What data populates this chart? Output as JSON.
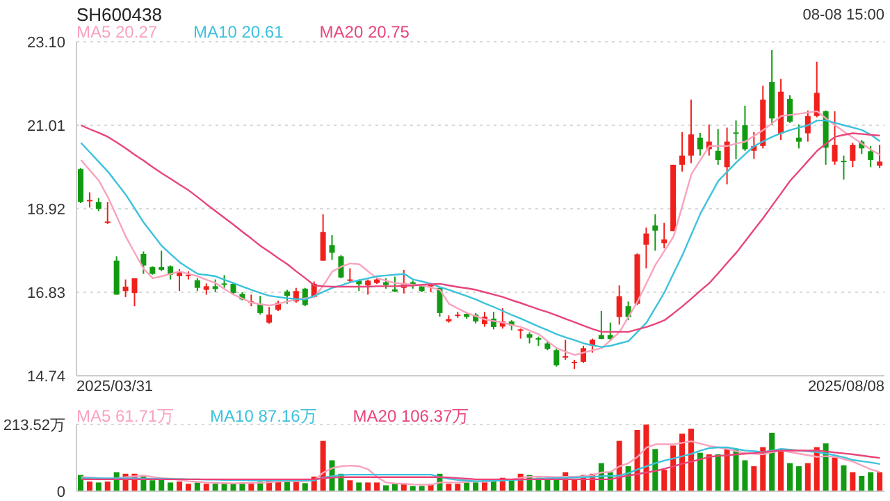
{
  "chart_data": [
    {
      "type": "candlestick",
      "title": "SH600438",
      "annotations": [
        "08-08 15:00",
        "2025/03/31",
        "2025/08/08"
      ],
      "legend": "top left",
      "grid": "y",
      "tick_labels": "y",
      "categories": [
        null,
        null,
        null,
        null,
        null,
        null,
        null,
        null,
        null,
        null,
        null,
        null,
        null,
        null,
        null,
        null,
        null,
        null,
        null,
        null,
        null,
        null,
        null,
        null,
        null,
        null,
        null,
        null,
        null,
        null,
        null,
        null,
        null,
        null,
        null,
        null,
        null,
        null,
        null,
        null,
        null,
        null,
        null,
        null,
        null,
        null,
        null,
        null,
        null,
        null,
        null,
        null,
        null,
        null,
        null,
        null,
        null,
        null,
        null,
        null,
        null,
        null,
        null,
        null,
        null,
        null,
        null,
        null,
        null,
        null,
        null,
        null,
        null,
        null,
        null,
        null,
        null,
        null,
        null,
        null,
        null,
        null,
        null,
        null,
        null,
        null,
        null,
        null,
        null,
        null
      ],
      "ylim": [
        14.74,
        23.1
      ],
      "yticks": [
        {
          "value": 23.1,
          "label": "23.10"
        },
        21.01,
        18.92,
        16.83,
        14.74
      ],
      "ohlc": [
        [
          19.91,
          19.94,
          19.06,
          19.09
        ],
        [
          19.12,
          19.33,
          18.95,
          19.14
        ],
        [
          19.09,
          19.19,
          18.86,
          18.92
        ],
        [
          18.58,
          19.09,
          18.54,
          18.6
        ],
        [
          17.62,
          17.73,
          16.77,
          16.77
        ],
        [
          16.86,
          17.15,
          16.71,
          16.97
        ],
        [
          16.81,
          17.18,
          16.48,
          17.18
        ],
        [
          17.79,
          17.85,
          17.29,
          17.5
        ],
        [
          17.46,
          17.48,
          17.27,
          17.29
        ],
        [
          17.46,
          17.87,
          17.36,
          17.39
        ],
        [
          17.48,
          17.5,
          17.15,
          17.27
        ],
        [
          17.23,
          17.41,
          16.86,
          17.35
        ],
        [
          17.26,
          17.35,
          17.15,
          17.27
        ],
        [
          17.13,
          17.18,
          16.86,
          16.94
        ],
        [
          16.89,
          17.05,
          16.77,
          16.98
        ],
        [
          16.98,
          17.15,
          16.83,
          16.91
        ],
        [
          17.05,
          17.26,
          16.94,
          17.03
        ],
        [
          17.04,
          17.08,
          16.77,
          16.81
        ],
        [
          16.79,
          16.83,
          16.63,
          16.65
        ],
        [
          16.59,
          16.77,
          16.48,
          16.6
        ],
        [
          16.54,
          16.74,
          16.27,
          16.31
        ],
        [
          16.07,
          16.46,
          16.04,
          16.27
        ],
        [
          16.39,
          16.62,
          16.36,
          16.57
        ],
        [
          16.85,
          16.89,
          16.54,
          16.74
        ],
        [
          16.6,
          16.94,
          16.57,
          16.86
        ],
        [
          16.92,
          16.94,
          16.48,
          16.51
        ],
        [
          16.71,
          17.1,
          16.71,
          17.04
        ],
        [
          17.62,
          18.78,
          17.62,
          18.34
        ],
        [
          18.01,
          18.26,
          17.64,
          17.82
        ],
        [
          17.73,
          17.76,
          17.18,
          17.2
        ],
        [
          17.13,
          17.43,
          17.06,
          17.15
        ],
        [
          17.12,
          17.15,
          16.86,
          17.03
        ],
        [
          17.0,
          17.15,
          16.77,
          17.12
        ],
        [
          17.06,
          17.2,
          17.04,
          17.15
        ],
        [
          17.08,
          17.18,
          16.92,
          17.01
        ],
        [
          16.9,
          17.22,
          16.83,
          16.85
        ],
        [
          16.94,
          17.39,
          16.8,
          17.06
        ],
        [
          17.08,
          17.12,
          16.92,
          17.01
        ],
        [
          16.98,
          17.04,
          16.83,
          16.86
        ],
        [
          17.0,
          17.06,
          16.83,
          17.01
        ],
        [
          16.94,
          16.94,
          16.22,
          16.31
        ],
        [
          16.1,
          16.25,
          16.07,
          16.16
        ],
        [
          16.26,
          16.34,
          16.19,
          16.27
        ],
        [
          16.29,
          16.34,
          16.17,
          16.21
        ],
        [
          16.27,
          16.31,
          16.05,
          16.1
        ],
        [
          16.03,
          16.34,
          15.97,
          16.22
        ],
        [
          16.17,
          16.34,
          15.9,
          15.96
        ],
        [
          15.97,
          16.43,
          15.92,
          16.1
        ],
        [
          16.1,
          16.13,
          15.88,
          16.0
        ],
        [
          15.89,
          15.92,
          15.67,
          15.9
        ],
        [
          15.78,
          15.83,
          15.55,
          15.69
        ],
        [
          15.68,
          15.72,
          15.49,
          15.67
        ],
        [
          15.55,
          15.61,
          15.38,
          15.41
        ],
        [
          15.38,
          15.43,
          14.97,
          15.0
        ],
        [
          15.22,
          15.64,
          15.14,
          15.23
        ],
        [
          15.08,
          15.14,
          14.91,
          15.09
        ],
        [
          15.09,
          15.49,
          15.06,
          15.43
        ],
        [
          15.49,
          15.67,
          15.32,
          15.64
        ],
        [
          15.76,
          16.36,
          15.66,
          15.66
        ],
        [
          15.76,
          16.07,
          15.61,
          15.66
        ],
        [
          16.21,
          17.0,
          16.02,
          16.73
        ],
        [
          16.48,
          16.6,
          16.13,
          16.21
        ],
        [
          16.54,
          17.8,
          16.51,
          17.78
        ],
        [
          18.02,
          18.45,
          17.43,
          18.3
        ],
        [
          18.5,
          18.78,
          17.87,
          18.37
        ],
        [
          18.06,
          18.57,
          17.93,
          18.15
        ],
        [
          18.36,
          20.02,
          18.36,
          20.02
        ],
        [
          20.02,
          20.84,
          19.85,
          20.25
        ],
        [
          20.25,
          21.65,
          20.06,
          20.78
        ],
        [
          20.7,
          20.82,
          20.25,
          20.41
        ],
        [
          20.41,
          21.03,
          20.25,
          20.6
        ],
        [
          20.37,
          20.92,
          20.02,
          20.14
        ],
        [
          19.96,
          20.95,
          19.53,
          20.6
        ],
        [
          20.83,
          21.13,
          20.16,
          20.81
        ],
        [
          21.01,
          21.5,
          20.37,
          20.41
        ],
        [
          20.37,
          20.84,
          20.17,
          20.49
        ],
        [
          20.49,
          22.0,
          20.43,
          21.65
        ],
        [
          22.09,
          22.89,
          21.01,
          21.18
        ],
        [
          20.8,
          22.17,
          20.64,
          21.85
        ],
        [
          21.67,
          21.76,
          21.07,
          21.1
        ],
        [
          20.7,
          21.03,
          20.43,
          20.6
        ],
        [
          20.81,
          21.38,
          20.6,
          21.24
        ],
        [
          21.24,
          22.6,
          21.21,
          21.82
        ],
        [
          21.36,
          21.38,
          20.02,
          20.45
        ],
        [
          20.1,
          21.36,
          20.02,
          20.52
        ],
        [
          20.12,
          20.25,
          19.65,
          20.1
        ],
        [
          20.12,
          20.57,
          19.96,
          20.52
        ],
        [
          20.6,
          20.64,
          20.29,
          20.43
        ],
        [
          20.36,
          20.49,
          19.96,
          20.14
        ],
        [
          20.0,
          20.52,
          19.94,
          20.1
        ]
      ],
      "colors": [
        "#129b12",
        "#f0201c",
        "#129b12",
        "#f0201c",
        "#129b12",
        "#f0201c",
        "#f0201c",
        "#129b12",
        "#129b12",
        "#129b12",
        "#129b12",
        "#f0201c",
        "#f0201c",
        "#129b12",
        "#f0201c",
        "#129b12",
        "#129b12",
        "#129b12",
        "#129b12",
        "#f0201c",
        "#129b12",
        "#f0201c",
        "#f0201c",
        "#129b12",
        "#f0201c",
        "#129b12",
        "#f0201c",
        "#f0201c",
        "#129b12",
        "#129b12",
        "#f0201c",
        "#129b12",
        "#f0201c",
        "#f0201c",
        "#129b12",
        "#129b12",
        "#f0201c",
        "#129b12",
        "#129b12",
        "#f0201c",
        "#129b12",
        "#f0201c",
        "#f0201c",
        "#129b12",
        "#129b12",
        "#f0201c",
        "#129b12",
        "#f0201c",
        "#129b12",
        "#f0201c",
        "#129b12",
        "#129b12",
        "#129b12",
        "#129b12",
        "#f0201c",
        "#f0201c",
        "#f0201c",
        "#f0201c",
        "#129b12",
        "#129b12",
        "#f0201c",
        "#129b12",
        "#f0201c",
        "#f0201c",
        "#129b12",
        "#f0201c",
        "#f0201c",
        "#f0201c",
        "#f0201c",
        "#129b12",
        "#f0201c",
        "#129b12",
        "#f0201c",
        "#129b12",
        "#129b12",
        "#f0201c",
        "#f0201c",
        "#129b12",
        "#f0201c",
        "#129b12",
        "#129b12",
        "#f0201c",
        "#f0201c",
        "#129b12",
        "#f0201c",
        "#129b12",
        "#f0201c",
        "#129b12",
        "#129b12",
        "#f0201c"
      ],
      "series": [
        {
          "type": "line",
          "name": "MA5 20.27",
          "color": "#f9a3bd",
          "values": [
            20.14,
            19.88,
            19.62,
            19.21,
            18.72,
            18.22,
            17.81,
            17.41,
            17.18,
            17.23,
            17.29,
            17.35,
            17.29,
            17.23,
            17.14,
            17.06,
            16.91,
            16.77,
            16.67,
            16.57,
            16.53,
            16.5,
            16.54,
            16.6,
            16.65,
            16.68,
            16.71,
            17.0,
            17.35,
            17.47,
            17.55,
            17.53,
            17.35,
            17.18,
            17.12,
            17.06,
            17.04,
            17.02,
            17.0,
            16.95,
            16.89,
            16.54,
            16.42,
            16.31,
            16.23,
            16.15,
            16.11,
            16.07,
            16.01,
            15.96,
            15.87,
            15.78,
            15.6,
            15.43,
            15.34,
            15.26,
            15.32,
            15.38,
            15.43,
            15.63,
            15.84,
            16.22,
            16.6,
            17.06,
            17.52,
            17.87,
            18.22,
            19.0,
            19.79,
            20.14,
            20.49,
            20.49,
            20.49,
            20.55,
            20.6,
            20.75,
            20.89,
            21.06,
            21.24,
            21.27,
            21.3,
            21.33,
            21.36,
            21.18,
            21.01,
            20.85,
            20.7,
            20.55,
            20.4,
            20.27
          ]
        },
        {
          "type": "line",
          "name": "MA10 20.61",
          "color": "#3cc2dc",
          "values": [
            20.57,
            20.33,
            20.09,
            19.85,
            19.56,
            19.27,
            18.92,
            18.57,
            18.28,
            17.99,
            17.78,
            17.58,
            17.43,
            17.29,
            17.26,
            17.23,
            17.14,
            17.06,
            16.97,
            16.89,
            16.81,
            16.74,
            16.71,
            16.68,
            16.66,
            16.65,
            16.74,
            16.84,
            16.94,
            17.0,
            17.08,
            17.13,
            17.18,
            17.23,
            17.25,
            17.27,
            17.29,
            17.15,
            17.1,
            17.04,
            16.96,
            16.89,
            16.81,
            16.73,
            16.65,
            16.55,
            16.46,
            16.36,
            16.26,
            16.17,
            16.07,
            15.97,
            15.88,
            15.78,
            15.7,
            15.63,
            15.55,
            15.5,
            15.46,
            15.49,
            15.55,
            15.61,
            15.84,
            16.07,
            16.45,
            16.83,
            17.3,
            17.76,
            18.28,
            18.8,
            19.21,
            19.62,
            19.85,
            20.08,
            20.29,
            20.49,
            20.61,
            20.72,
            20.81,
            20.89,
            20.95,
            21.01,
            21.13,
            21.13,
            21.07,
            21.01,
            20.95,
            20.89,
            20.77,
            20.61
          ]
        },
        {
          "type": "line",
          "name": "MA20 20.75",
          "color": "#e8457a",
          "values": [
            21.01,
            20.91,
            20.82,
            20.72,
            20.58,
            20.43,
            20.27,
            20.12,
            19.96,
            19.81,
            19.67,
            19.52,
            19.38,
            19.21,
            19.03,
            18.86,
            18.69,
            18.52,
            18.34,
            18.17,
            17.99,
            17.84,
            17.68,
            17.53,
            17.35,
            17.18,
            17.0,
            16.98,
            16.97,
            16.97,
            16.97,
            16.97,
            16.97,
            16.98,
            16.98,
            16.98,
            16.99,
            17.0,
            17.02,
            17.03,
            17.04,
            17.0,
            16.96,
            16.93,
            16.89,
            16.83,
            16.77,
            16.71,
            16.63,
            16.56,
            16.48,
            16.4,
            16.33,
            16.25,
            16.16,
            16.08,
            15.99,
            15.91,
            15.84,
            15.84,
            15.84,
            15.84,
            15.9,
            15.96,
            16.04,
            16.13,
            16.3,
            16.48,
            16.67,
            16.87,
            17.06,
            17.31,
            17.57,
            17.82,
            18.11,
            18.4,
            18.69,
            19.0,
            19.31,
            19.62,
            19.87,
            20.12,
            20.37,
            20.55,
            20.72,
            20.77,
            20.81,
            20.79,
            20.77,
            20.75
          ]
        }
      ]
    },
    {
      "type": "bar",
      "legend": "top left",
      "grid": "y",
      "tick_labels": "y",
      "categories": [
        null,
        null,
        null,
        null,
        null,
        null,
        null,
        null,
        null,
        null,
        null,
        null,
        null,
        null,
        null,
        null,
        null,
        null,
        null,
        null,
        null,
        null,
        null,
        null,
        null,
        null,
        null,
        null,
        null,
        null,
        null,
        null,
        null,
        null,
        null,
        null,
        null,
        null,
        null,
        null,
        null,
        null,
        null,
        null,
        null,
        null,
        null,
        null,
        null,
        null,
        null,
        null,
        null,
        null,
        null,
        null,
        null,
        null,
        null,
        null,
        null,
        null,
        null,
        null,
        null,
        null,
        null,
        null,
        null,
        null,
        null,
        null,
        null,
        null,
        null,
        null,
        null,
        null,
        null,
        null,
        null,
        null,
        null,
        null,
        null,
        null,
        null,
        null,
        null,
        null
      ],
      "ylim": [
        0,
        213.52
      ],
      "yticks": [
        0,
        {
          "value": 213.52,
          "label": "213.52万"
        }
      ],
      "values": [
        52,
        31,
        28,
        31,
        61,
        56,
        56,
        49,
        35,
        43,
        28,
        31,
        24,
        28,
        24,
        24,
        24,
        26,
        28,
        24,
        31,
        35,
        35,
        31,
        31,
        26,
        47,
        161,
        99,
        56,
        35,
        28,
        28,
        28,
        19,
        24,
        26,
        17,
        17,
        24,
        56,
        24,
        24,
        28,
        28,
        35,
        40,
        43,
        40,
        56,
        52,
        43,
        36,
        40,
        61,
        40,
        52,
        56,
        90,
        61,
        161,
        80,
        196,
        213,
        135,
        69,
        146,
        184,
        200,
        123,
        118,
        118,
        135,
        134,
        99,
        80,
        141,
        187,
        132,
        90,
        80,
        90,
        141,
        153,
        108,
        83,
        61,
        49,
        61,
        61
      ],
      "colors": [
        "#129b12",
        "#f0201c",
        "#129b12",
        "#f0201c",
        "#129b12",
        "#f0201c",
        "#f0201c",
        "#129b12",
        "#129b12",
        "#129b12",
        "#129b12",
        "#f0201c",
        "#f0201c",
        "#129b12",
        "#f0201c",
        "#129b12",
        "#129b12",
        "#129b12",
        "#129b12",
        "#f0201c",
        "#129b12",
        "#f0201c",
        "#f0201c",
        "#129b12",
        "#f0201c",
        "#129b12",
        "#f0201c",
        "#f0201c",
        "#129b12",
        "#129b12",
        "#f0201c",
        "#129b12",
        "#f0201c",
        "#f0201c",
        "#129b12",
        "#129b12",
        "#f0201c",
        "#129b12",
        "#129b12",
        "#f0201c",
        "#129b12",
        "#f0201c",
        "#f0201c",
        "#129b12",
        "#129b12",
        "#f0201c",
        "#129b12",
        "#f0201c",
        "#129b12",
        "#f0201c",
        "#129b12",
        "#129b12",
        "#129b12",
        "#129b12",
        "#f0201c",
        "#f0201c",
        "#f0201c",
        "#f0201c",
        "#129b12",
        "#129b12",
        "#f0201c",
        "#129b12",
        "#f0201c",
        "#f0201c",
        "#129b12",
        "#f0201c",
        "#f0201c",
        "#f0201c",
        "#f0201c",
        "#129b12",
        "#f0201c",
        "#129b12",
        "#f0201c",
        "#129b12",
        "#129b12",
        "#f0201c",
        "#f0201c",
        "#129b12",
        "#f0201c",
        "#129b12",
        "#129b12",
        "#f0201c",
        "#f0201c",
        "#129b12",
        "#f0201c",
        "#129b12",
        "#f0201c",
        "#129b12",
        "#129b12",
        "#f0201c"
      ],
      "series": [
        {
          "type": "line",
          "name": "MA5 61.71万",
          "color": "#f9a3bd",
          "values": [
            45,
            44,
            42,
            40,
            42,
            45,
            48,
            50,
            46,
            42,
            40,
            36,
            32,
            30,
            28,
            27,
            26,
            25,
            26,
            27,
            27,
            29,
            31,
            32,
            32,
            32,
            36,
            60,
            74,
            80,
            82,
            80,
            70,
            45,
            28,
            25,
            24,
            22,
            21,
            21,
            28,
            28,
            28,
            30,
            32,
            30,
            33,
            35,
            38,
            43,
            46,
            47,
            46,
            45,
            46,
            46,
            48,
            52,
            60,
            62,
            80,
            90,
            110,
            140,
            150,
            150,
            150,
            155,
            160,
            152,
            145,
            140,
            135,
            128,
            122,
            120,
            118,
            125,
            130,
            125,
            120,
            115,
            110,
            112,
            110,
            102,
            95,
            82,
            70,
            61.71
          ]
        },
        {
          "type": "line",
          "name": "MA10 87.16万",
          "color": "#3cc2dc",
          "values": [
            42,
            42,
            41,
            41,
            41,
            41,
            41,
            40,
            40,
            40,
            39,
            39,
            38,
            38,
            37,
            37,
            36,
            36,
            36,
            35,
            35,
            35,
            35,
            35,
            35,
            35,
            35,
            44,
            48,
            52,
            53,
            53,
            53,
            53,
            53,
            53,
            53,
            53,
            53,
            53,
            45,
            40,
            36,
            34,
            32,
            33,
            34,
            35,
            36,
            37,
            38,
            40,
            41,
            42,
            43,
            44,
            45,
            46,
            48,
            49,
            50,
            58,
            70,
            80,
            90,
            98,
            105,
            112,
            120,
            130,
            138,
            140,
            140,
            135,
            130,
            128,
            125,
            130,
            135,
            133,
            130,
            128,
            125,
            120,
            115,
            108,
            100,
            96,
            92,
            87.16
          ]
        },
        {
          "type": "line",
          "name": "MA20 106.37万",
          "color": "#e8457a",
          "values": [
            38,
            38,
            38,
            38,
            38,
            38,
            38,
            38,
            38,
            38,
            38,
            38,
            38,
            38,
            38,
            38,
            38,
            38,
            38,
            38,
            38,
            38,
            38,
            38,
            38,
            38,
            38,
            42,
            44,
            45,
            45,
            45,
            45,
            45,
            45,
            45,
            45,
            45,
            45,
            45,
            45,
            44,
            42,
            40,
            38,
            38,
            38,
            38,
            38,
            38,
            38,
            38,
            38,
            38,
            38,
            38,
            38,
            38,
            38,
            38,
            45,
            50,
            55,
            60,
            65,
            72,
            80,
            88,
            95,
            102,
            110,
            113,
            115,
            118,
            120,
            122,
            125,
            128,
            130,
            130,
            130,
            130,
            130,
            127,
            124,
            121,
            118,
            114,
            110,
            106.37
          ]
        }
      ]
    }
  ]
}
